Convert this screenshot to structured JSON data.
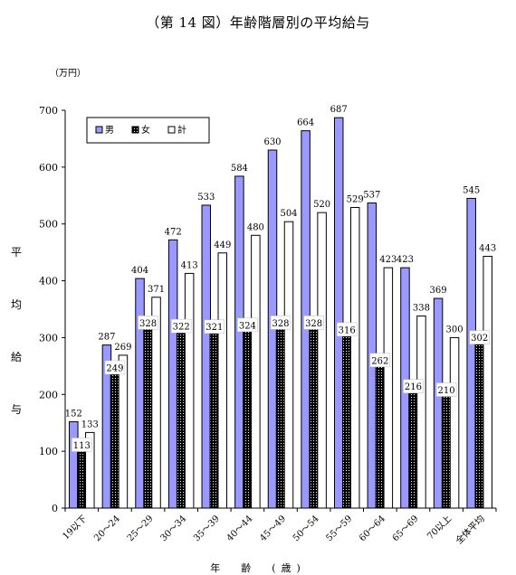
{
  "chart_data": {
    "type": "bar",
    "title": "（第 14 図）年齢階層別の平均給与",
    "unit": "（万円）",
    "ylabel": [
      "平",
      "均",
      "給",
      "与"
    ],
    "xlabel": "年　齢　(歳)",
    "ylim": [
      0,
      700
    ],
    "yticks": [
      0,
      100,
      200,
      300,
      400,
      500,
      600,
      700
    ],
    "categories": [
      "19以下",
      "20～24",
      "25～29",
      "30～34",
      "35～39",
      "40～44",
      "45～49",
      "50～54",
      "55～59",
      "60～64",
      "65～69",
      "70以上",
      "全体平均"
    ],
    "series": [
      {
        "name": "男",
        "color": "#9999ff",
        "pattern": "solid",
        "values": [
          152,
          287,
          404,
          472,
          533,
          584,
          630,
          664,
          687,
          537,
          423,
          369,
          545
        ]
      },
      {
        "name": "女",
        "color": "#000000",
        "pattern": "dotted",
        "values": [
          113,
          249,
          328,
          322,
          321,
          324,
          328,
          328,
          316,
          262,
          216,
          210,
          302
        ]
      },
      {
        "name": "計",
        "color": "#ffffff",
        "pattern": "outline",
        "values": [
          133,
          269,
          371,
          413,
          449,
          480,
          504,
          520,
          529,
          423,
          338,
          300,
          443
        ]
      }
    ],
    "legend": "top-left",
    "grid": false
  }
}
